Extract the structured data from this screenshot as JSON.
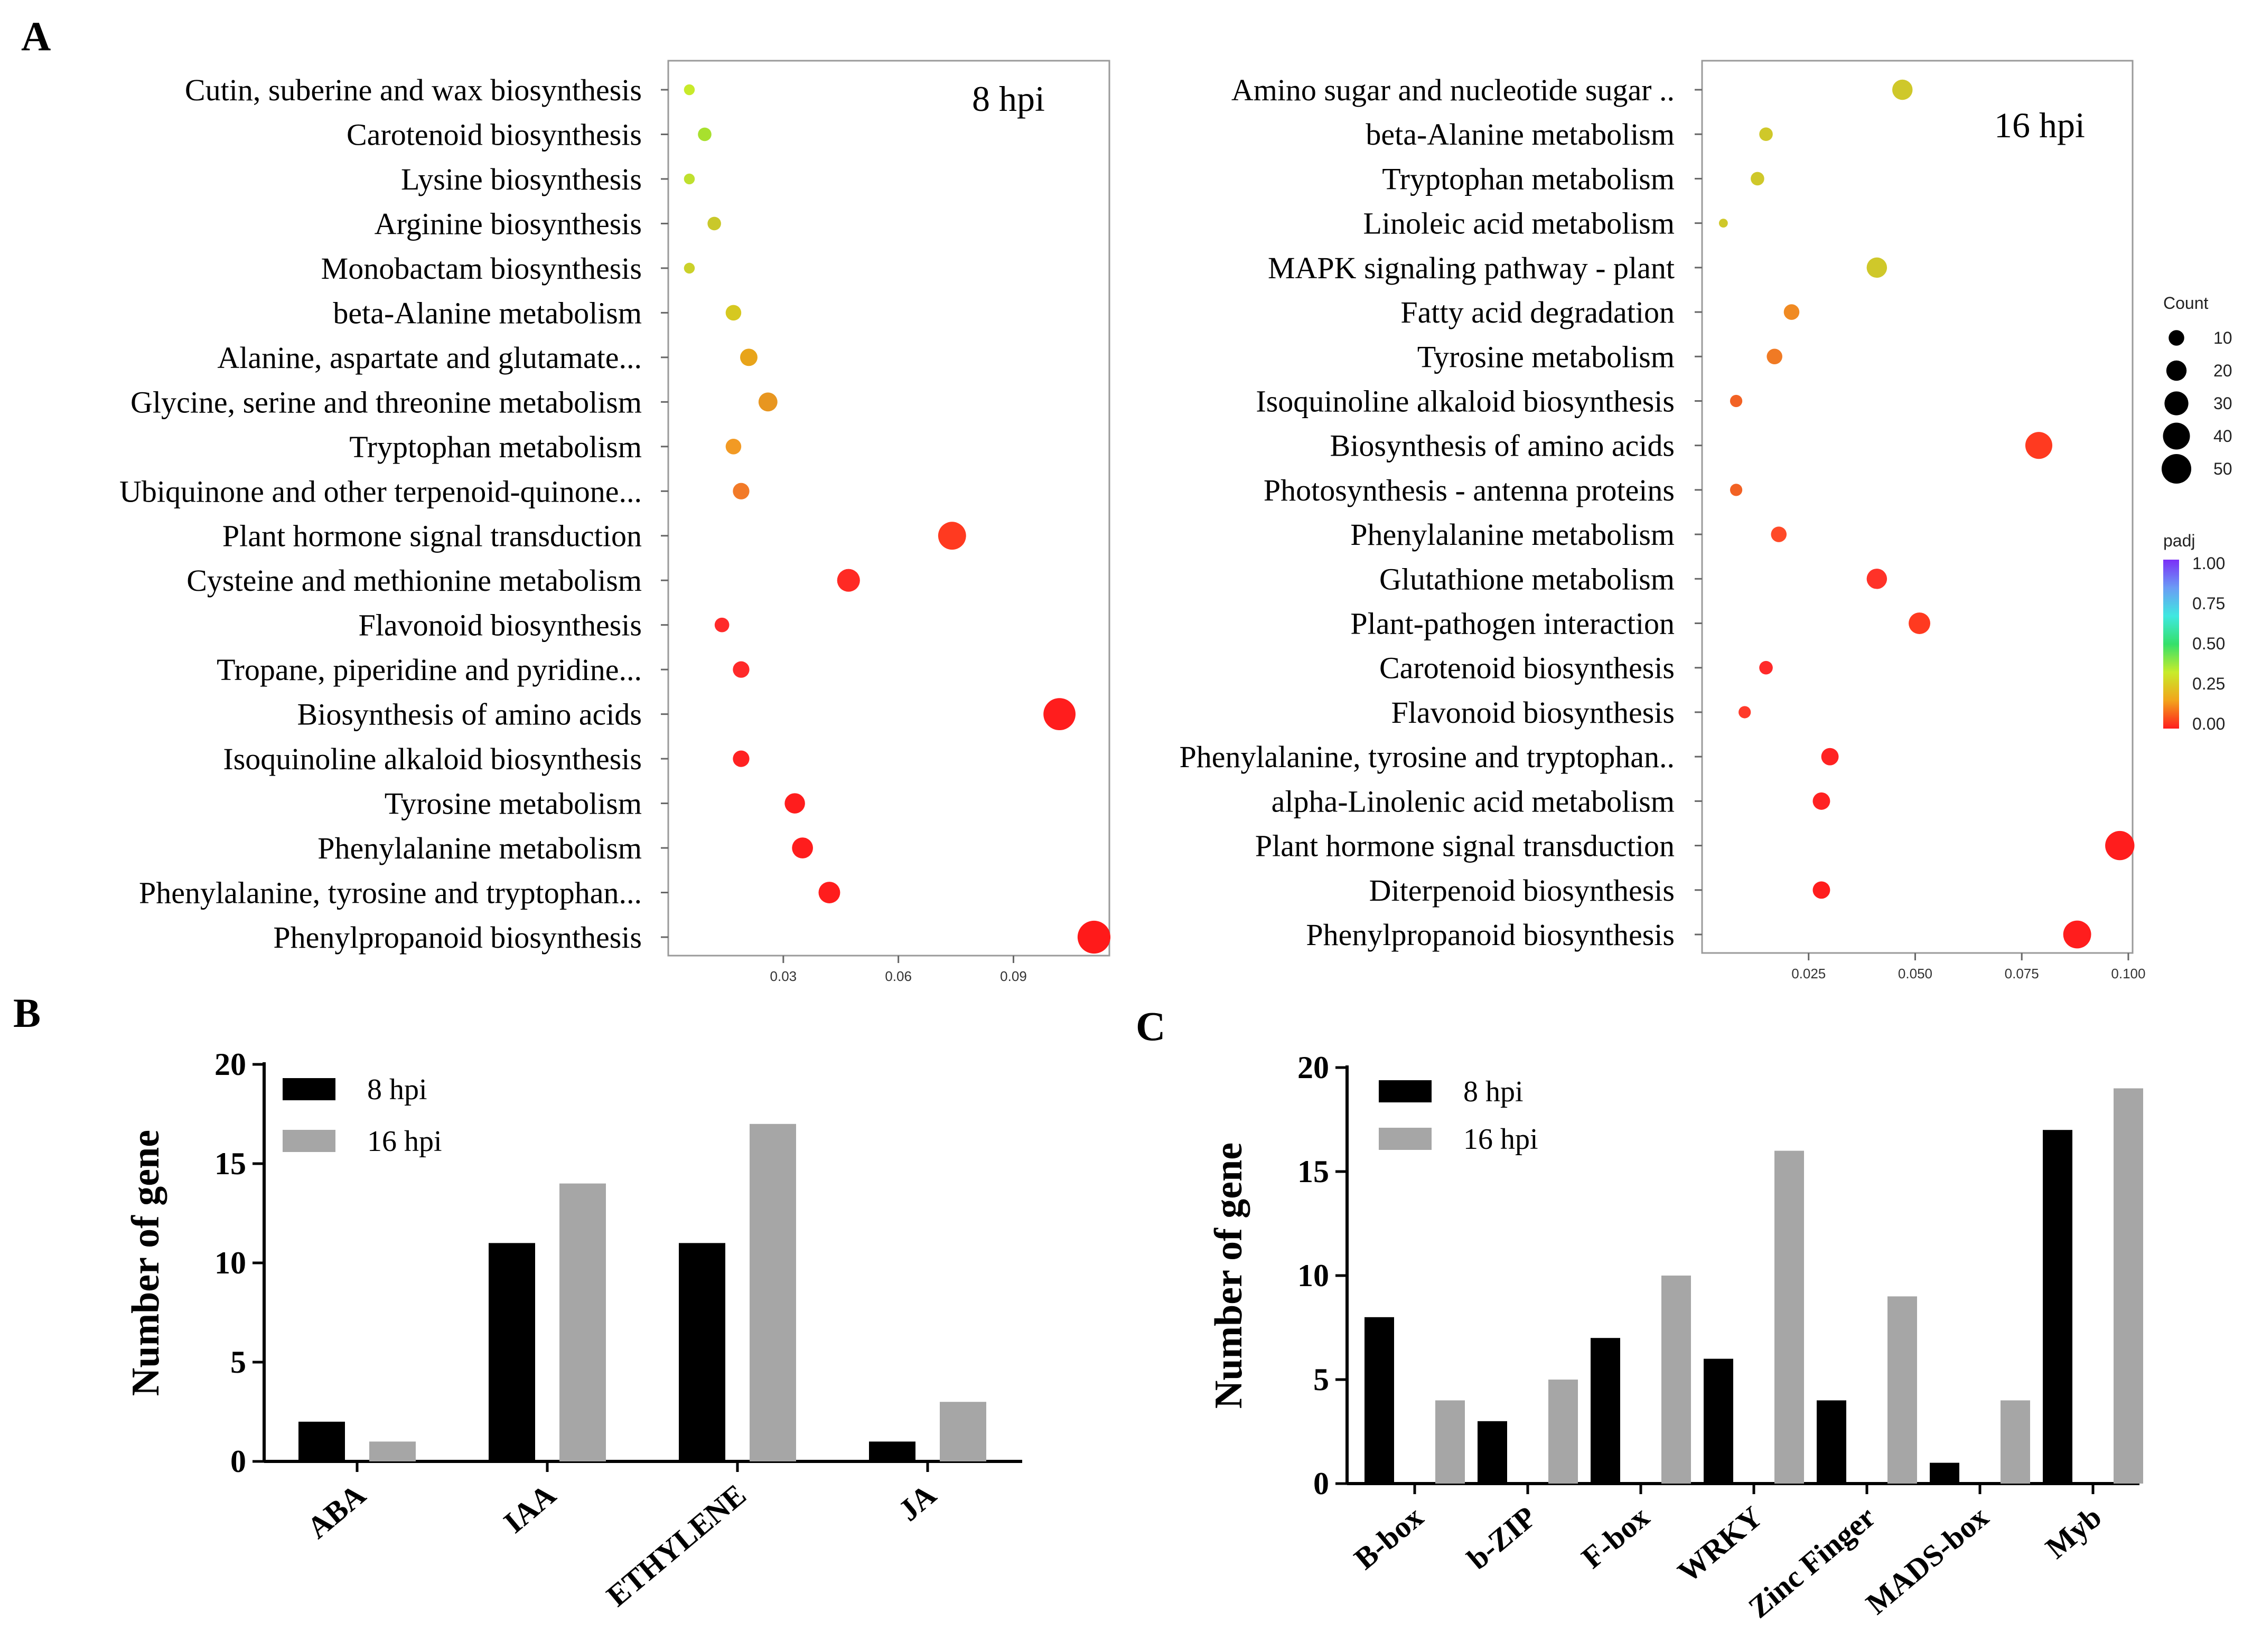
{
  "panels": {
    "a": "A",
    "b": "B",
    "c": "C"
  },
  "legend": {
    "count_title": "Count",
    "count_values": [
      "10",
      "20",
      "30",
      "40",
      "50"
    ],
    "padj_title": "padj",
    "padj_ticks": [
      "1.00",
      "0.75",
      "0.50",
      "0.25",
      "0.00"
    ],
    "padj_colors": [
      "#7b2ff7",
      "#6b9cf5",
      "#3fe8e0",
      "#35e06a",
      "#c8ec2a",
      "#f2a41c",
      "#ff1d1d"
    ]
  },
  "chart_data": [
    {
      "type": "scatter",
      "title": "8 hpi",
      "xlim": [
        0.0,
        0.115
      ],
      "xticks": [
        0.03,
        0.06,
        0.09
      ],
      "xtick_labels": [
        "0.03",
        "0.06",
        "0.09"
      ],
      "categories": [
        "Cutin, suberine and wax biosynthesis",
        "Carotenoid biosynthesis",
        "Lysine biosynthesis",
        "Arginine biosynthesis",
        "Monobactam biosynthesis",
        "beta-Alanine metabolism",
        "Alanine, aspartate and glutamate...",
        "Glycine, serine and threonine metabolism",
        "Tryptophan metabolism",
        "Ubiquinone and other terpenoid-quinone...",
        "Plant hormone signal transduction",
        "Cysteine and methionine metabolism",
        "Flavonoid biosynthesis",
        "Tropane, piperidine and pyridine...",
        "Biosynthesis of amino acids",
        "Isoquinoline alkaloid biosynthesis",
        "Tyrosine metabolism",
        "Phenylalanine metabolism",
        "Phenylalanine, tyrosine and tryptophan...",
        "Phenylpropanoid biosynthesis"
      ],
      "x": [
        0.0055,
        0.0095,
        0.0055,
        0.012,
        0.0055,
        0.017,
        0.021,
        0.026,
        0.017,
        0.019,
        0.074,
        0.047,
        0.014,
        0.019,
        0.102,
        0.019,
        0.033,
        0.035,
        0.042,
        0.111
      ],
      "count": [
        2,
        4,
        2,
        4,
        2,
        6,
        8,
        10,
        6,
        7,
        26,
        16,
        5,
        7,
        36,
        7,
        12,
        13,
        14,
        38
      ],
      "padj": [
        0.18,
        0.2,
        0.18,
        0.15,
        0.18,
        0.12,
        0.09,
        0.08,
        0.07,
        0.05,
        0.01,
        0.005,
        0.005,
        0.004,
        0.001,
        0.002,
        0.001,
        0.001,
        0.001,
        0.0005
      ],
      "colors": [
        "#c8ea2a",
        "#a8e02e",
        "#bfe02e",
        "#c9c82a",
        "#cbd12a",
        "#d6c820",
        "#e8a41a",
        "#e89620",
        "#f29a24",
        "#f27a28",
        "#ff3a20",
        "#ff2a24",
        "#ff2a2a",
        "#ff2a2a",
        "#ff1d1d",
        "#ff2222",
        "#ff1d1d",
        "#ff1d1d",
        "#ff1d1d",
        "#ff1a1a"
      ]
    },
    {
      "type": "scatter",
      "title": "16 hpi",
      "xlim": [
        0.0,
        0.101
      ],
      "xticks": [
        0.025,
        0.05,
        0.075,
        0.1
      ],
      "xtick_labels": [
        "0.025",
        "0.050",
        "0.075",
        "0.100"
      ],
      "categories": [
        "Amino sugar and nucleotide sugar ..",
        "beta-Alanine metabolism",
        "Tryptophan metabolism",
        "Linoleic acid metabolism",
        "MAPK signaling pathway - plant",
        "Fatty acid degradation",
        "Tyrosine metabolism",
        "Isoquinoline alkaloid biosynthesis",
        "Biosynthesis of amino acids",
        "Photosynthesis - antenna proteins",
        "Phenylalanine metabolism",
        "Glutathione metabolism",
        "Plant-pathogen interaction",
        "Carotenoid biosynthesis",
        "Flavonoid biosynthesis",
        "Phenylalanine, tyrosine and tryptophan..",
        "alpha-Linolenic acid metabolism",
        "Plant hormone signal transduction",
        "Diterpenoid biosynthesis",
        "Phenylpropanoid biosynthesis"
      ],
      "x": [
        0.047,
        0.015,
        0.013,
        0.005,
        0.041,
        0.021,
        0.017,
        0.008,
        0.079,
        0.008,
        0.018,
        0.041,
        0.051,
        0.015,
        0.01,
        0.03,
        0.028,
        0.098,
        0.028,
        0.088
      ],
      "count": [
        12,
        4,
        4,
        1,
        12,
        6,
        6,
        3,
        24,
        3,
        6,
        12,
        14,
        4,
        3,
        8,
        8,
        29,
        8,
        26
      ],
      "padj": [
        0.2,
        0.18,
        0.18,
        0.2,
        0.17,
        0.07,
        0.05,
        0.03,
        0.01,
        0.03,
        0.02,
        0.01,
        0.01,
        0.01,
        0.01,
        0.005,
        0.005,
        0.001,
        0.002,
        0.001
      ],
      "colors": [
        "#cfc82a",
        "#cfc82a",
        "#cfc82a",
        "#cfc82a",
        "#cfc82a",
        "#f08a22",
        "#f07a24",
        "#f26224",
        "#ff3a20",
        "#f26224",
        "#ff4a28",
        "#ff3228",
        "#ff3a20",
        "#ff2a2a",
        "#ff3a2a",
        "#ff2222",
        "#ff2222",
        "#ff1d1d",
        "#ff1d1d",
        "#ff1d1d"
      ]
    },
    {
      "type": "bar",
      "ylabel": "Number of gene",
      "ylim": [
        0,
        20
      ],
      "yticks": [
        "0",
        "5",
        "10",
        "15",
        "20"
      ],
      "categories": [
        "ABA",
        "IAA",
        "ETHYLENE",
        "JA"
      ],
      "series": [
        {
          "name": "8 hpi",
          "color": "#000000",
          "values": [
            2,
            11,
            11,
            1
          ]
        },
        {
          "name": "16 hpi",
          "color": "#a6a6a6",
          "values": [
            1,
            14,
            17,
            3
          ]
        }
      ]
    },
    {
      "type": "bar",
      "ylabel": "Number of gene",
      "ylim": [
        0,
        20
      ],
      "yticks": [
        "0",
        "5",
        "10",
        "15",
        "20"
      ],
      "categories": [
        "B-box",
        "b-ZIP",
        "F-box",
        "WRKY",
        "Zinc Finger",
        "MADS-box",
        "Myb"
      ],
      "series": [
        {
          "name": "8 hpi",
          "color": "#000000",
          "values": [
            8,
            3,
            7,
            6,
            4,
            1,
            17
          ]
        },
        {
          "name": "16 hpi",
          "color": "#a6a6a6",
          "values": [
            4,
            5,
            10,
            16,
            9,
            4,
            19
          ]
        }
      ]
    }
  ]
}
